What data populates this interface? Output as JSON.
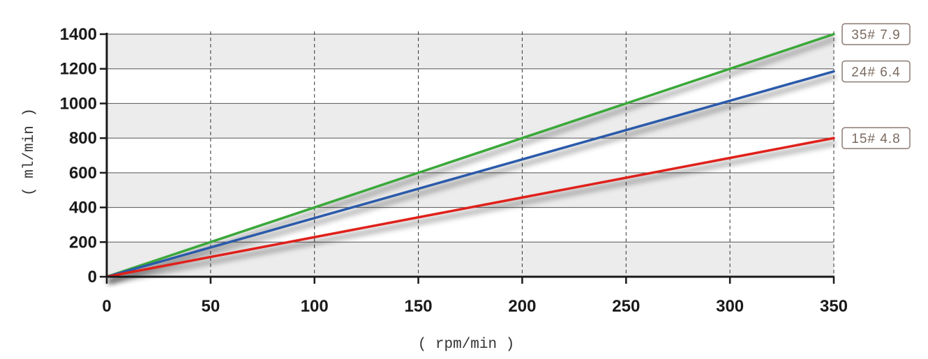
{
  "chart_data": {
    "type": "line",
    "title": "",
    "xlabel": "( rpm/min )",
    "ylabel": "( ml/min )",
    "xlim": [
      0,
      350
    ],
    "ylim": [
      0,
      1400
    ],
    "x_ticks": [
      "0",
      "50",
      "100",
      "150",
      "200",
      "250",
      "300",
      "350"
    ],
    "y_ticks": [
      "0",
      "200",
      "400",
      "600",
      "800",
      "1000",
      "1200",
      "1400"
    ],
    "grid": true,
    "series": [
      {
        "name": "35# 7.9",
        "color": "#3aa83a",
        "x": [
          0,
          350
        ],
        "y": [
          0,
          1400
        ]
      },
      {
        "name": "24# 6.4",
        "color": "#2a5aaa",
        "x": [
          0,
          350
        ],
        "y": [
          0,
          1185
        ]
      },
      {
        "name": "15# 4.8",
        "color": "#e0201a",
        "x": [
          0,
          350
        ],
        "y": [
          0,
          800
        ]
      }
    ]
  }
}
